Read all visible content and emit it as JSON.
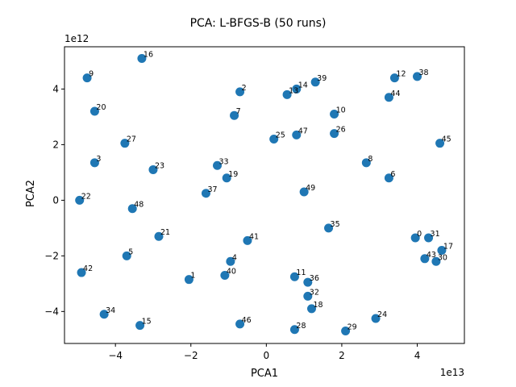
{
  "chart_data": {
    "type": "scatter",
    "title": "PCA: L-BFGS-B (50 runs)",
    "xlabel": "PCA1",
    "ylabel": "PCA2",
    "x_multiplier_label": "1e13",
    "y_multiplier_label": "1e12",
    "x_scale": 10000000000000,
    "y_scale": 1000000000000,
    "xlim": [
      -5.35,
      5.25
    ],
    "ylim": [
      -5.15,
      5.52
    ],
    "x_ticks": [
      -4,
      -2,
      0,
      2,
      4
    ],
    "y_ticks": [
      -4,
      -2,
      0,
      2,
      4
    ],
    "marker_color": "#1f77b4",
    "points": [
      {
        "label": "0",
        "x": 3.95,
        "y": -1.35
      },
      {
        "label": "1",
        "x": -2.05,
        "y": -2.85
      },
      {
        "label": "2",
        "x": -0.7,
        "y": 3.9
      },
      {
        "label": "3",
        "x": -4.55,
        "y": 1.35
      },
      {
        "label": "4",
        "x": -0.95,
        "y": -2.2
      },
      {
        "label": "5",
        "x": -3.7,
        "y": -2.0
      },
      {
        "label": "6",
        "x": 3.25,
        "y": 0.8
      },
      {
        "label": "7",
        "x": -0.85,
        "y": 3.05
      },
      {
        "label": "8",
        "x": 2.65,
        "y": 1.35
      },
      {
        "label": "9",
        "x": -4.75,
        "y": 4.4
      },
      {
        "label": "10",
        "x": 1.8,
        "y": 3.1
      },
      {
        "label": "11",
        "x": 0.75,
        "y": -2.75
      },
      {
        "label": "12",
        "x": 3.4,
        "y": 4.4
      },
      {
        "label": "13",
        "x": 0.55,
        "y": 3.8
      },
      {
        "label": "14",
        "x": 0.8,
        "y": 4.0
      },
      {
        "label": "15",
        "x": -3.35,
        "y": -4.5
      },
      {
        "label": "16",
        "x": -3.3,
        "y": 5.1
      },
      {
        "label": "17",
        "x": 4.65,
        "y": -1.8
      },
      {
        "label": "18",
        "x": 1.2,
        "y": -3.9
      },
      {
        "label": "19",
        "x": -1.05,
        "y": 0.8
      },
      {
        "label": "20",
        "x": -4.55,
        "y": 3.2
      },
      {
        "label": "21",
        "x": -2.85,
        "y": -1.3
      },
      {
        "label": "22",
        "x": -4.95,
        "y": 0.0
      },
      {
        "label": "23",
        "x": -3.0,
        "y": 1.1
      },
      {
        "label": "24",
        "x": 2.9,
        "y": -4.25
      },
      {
        "label": "25",
        "x": 0.2,
        "y": 2.2
      },
      {
        "label": "26",
        "x": 1.8,
        "y": 2.4
      },
      {
        "label": "27",
        "x": -3.75,
        "y": 2.05
      },
      {
        "label": "28",
        "x": 0.75,
        "y": -4.65
      },
      {
        "label": "29",
        "x": 2.1,
        "y": -4.7
      },
      {
        "label": "30",
        "x": 4.5,
        "y": -2.2
      },
      {
        "label": "31",
        "x": 4.3,
        "y": -1.35
      },
      {
        "label": "32",
        "x": 1.1,
        "y": -3.45
      },
      {
        "label": "33",
        "x": -1.3,
        "y": 1.25
      },
      {
        "label": "34",
        "x": -4.3,
        "y": -4.1
      },
      {
        "label": "35",
        "x": 1.65,
        "y": -1.0
      },
      {
        "label": "36",
        "x": 1.1,
        "y": -2.95
      },
      {
        "label": "37",
        "x": -1.6,
        "y": 0.25
      },
      {
        "label": "38",
        "x": 4.0,
        "y": 4.45
      },
      {
        "label": "39",
        "x": 1.3,
        "y": 4.25
      },
      {
        "label": "40",
        "x": -1.1,
        "y": -2.7
      },
      {
        "label": "41",
        "x": -0.5,
        "y": -1.45
      },
      {
        "label": "42",
        "x": -4.9,
        "y": -2.6
      },
      {
        "label": "43",
        "x": 4.2,
        "y": -2.1
      },
      {
        "label": "44",
        "x": 3.25,
        "y": 3.7
      },
      {
        "label": "45",
        "x": 4.6,
        "y": 2.05
      },
      {
        "label": "46",
        "x": -0.7,
        "y": -4.45
      },
      {
        "label": "47",
        "x": 0.8,
        "y": 2.35
      },
      {
        "label": "48",
        "x": -3.55,
        "y": -0.3
      },
      {
        "label": "49",
        "x": 1.0,
        "y": 0.3
      }
    ]
  }
}
